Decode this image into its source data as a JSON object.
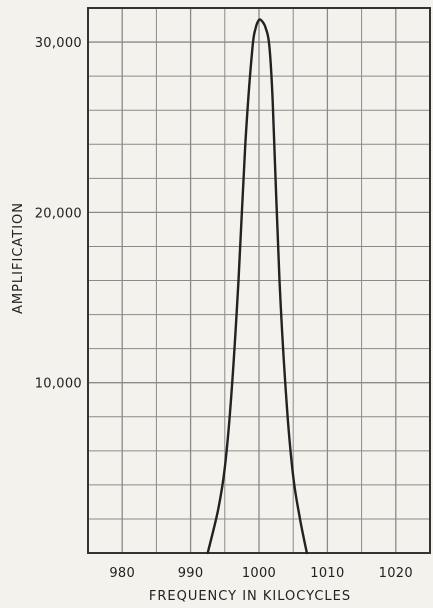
{
  "chart_data": {
    "type": "line",
    "title": "",
    "xlabel": "FREQUENCY IN KILOCYCLES",
    "ylabel": "AMPLIFICATION",
    "x_ticks": [
      "980",
      "990",
      "1000",
      "1010",
      "1020"
    ],
    "y_ticks": [
      "10,000",
      "20,000",
      "30,000"
    ],
    "xlim": [
      975,
      1025
    ],
    "ylim": [
      0,
      32000
    ],
    "grid": true,
    "series": [
      {
        "x": [
          992.5,
          994,
          995,
          996,
          997,
          998,
          999,
          999.5,
          1000,
          1000.5,
          1001,
          1001.5,
          1002,
          1003,
          1004,
          1005,
          1006,
          1007
        ],
        "y": [
          0,
          2500,
          5000,
          9500,
          16000,
          24000,
          29500,
          30800,
          31300,
          31200,
          30800,
          29800,
          26500,
          16000,
          9000,
          4500,
          2000,
          0
        ]
      }
    ],
    "line_color": "#222222",
    "grid_color": "#8a8a8a",
    "paper_color": "#f4f2ec"
  }
}
